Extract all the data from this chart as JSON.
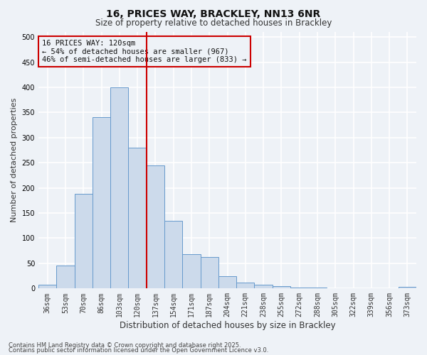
{
  "title1": "16, PRICES WAY, BRACKLEY, NN13 6NR",
  "title2": "Size of property relative to detached houses in Brackley",
  "xlabel": "Distribution of detached houses by size in Brackley",
  "ylabel": "Number of detached properties",
  "categories": [
    "36sqm",
    "53sqm",
    "70sqm",
    "86sqm",
    "103sqm",
    "120sqm",
    "137sqm",
    "154sqm",
    "171sqm",
    "187sqm",
    "204sqm",
    "221sqm",
    "238sqm",
    "255sqm",
    "272sqm",
    "288sqm",
    "305sqm",
    "322sqm",
    "339sqm",
    "356sqm",
    "373sqm"
  ],
  "values": [
    8,
    46,
    188,
    340,
    400,
    280,
    245,
    135,
    68,
    63,
    25,
    12,
    7,
    4,
    2,
    2,
    1,
    1,
    0,
    0,
    3
  ],
  "bar_color": "#ccdaeb",
  "bar_edge_color": "#6699cc",
  "vline_color": "#cc0000",
  "annotation_title": "16 PRICES WAY: 120sqm",
  "annotation_line1": "← 54% of detached houses are smaller (967)",
  "annotation_line2": "46% of semi-detached houses are larger (833) →",
  "annotation_box_color": "#cc0000",
  "footnote1": "Contains HM Land Registry data © Crown copyright and database right 2025.",
  "footnote2": "Contains public sector information licensed under the Open Government Licence v3.0.",
  "ylim": [
    0,
    510
  ],
  "background_color": "#eef2f7",
  "grid_color": "#ffffff"
}
